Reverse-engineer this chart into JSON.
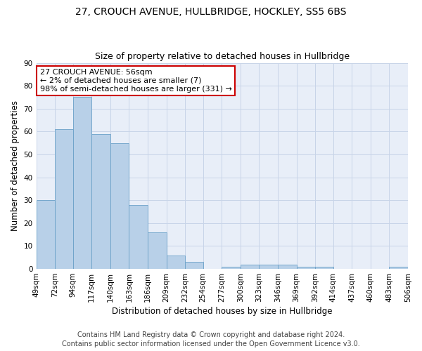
{
  "title": "27, CROUCH AVENUE, HULLBRIDGE, HOCKLEY, SS5 6BS",
  "subtitle": "Size of property relative to detached houses in Hullbridge",
  "xlabel": "Distribution of detached houses by size in Hullbridge",
  "ylabel": "Number of detached properties",
  "heights": [
    30,
    61,
    75,
    59,
    55,
    28,
    16,
    6,
    3,
    0,
    1,
    2,
    2,
    2,
    1,
    1,
    0,
    0,
    0,
    1
  ],
  "bin_edges": [
    49,
    72,
    94,
    117,
    140,
    163,
    186,
    209,
    232,
    254,
    277,
    300,
    323,
    346,
    369,
    392,
    414,
    437,
    460,
    483,
    506
  ],
  "tick_labels": [
    "49sqm",
    "72sqm",
    "94sqm",
    "117sqm",
    "140sqm",
    "163sqm",
    "186sqm",
    "209sqm",
    "232sqm",
    "254sqm",
    "277sqm",
    "300sqm",
    "323sqm",
    "346sqm",
    "369sqm",
    "392sqm",
    "414sqm",
    "437sqm",
    "460sqm",
    "483sqm",
    "506sqm"
  ],
  "bar_color": "#b8d0e8",
  "bar_edge_color": "#6aa0c8",
  "annotation_box_color": "#cc0000",
  "annotation_text": "27 CROUCH AVENUE: 56sqm\n← 2% of detached houses are smaller (7)\n98% of semi-detached houses are larger (331) →",
  "ylim": [
    0,
    90
  ],
  "yticks": [
    0,
    10,
    20,
    30,
    40,
    50,
    60,
    70,
    80,
    90
  ],
  "footer_line1": "Contains HM Land Registry data © Crown copyright and database right 2024.",
  "footer_line2": "Contains public sector information licensed under the Open Government Licence v3.0.",
  "bg_color": "#e8eef8",
  "grid_color": "#c8d4e8",
  "title_fontsize": 10,
  "subtitle_fontsize": 9,
  "axis_label_fontsize": 8.5,
  "tick_fontsize": 7.5,
  "annotation_fontsize": 8,
  "footer_fontsize": 7
}
